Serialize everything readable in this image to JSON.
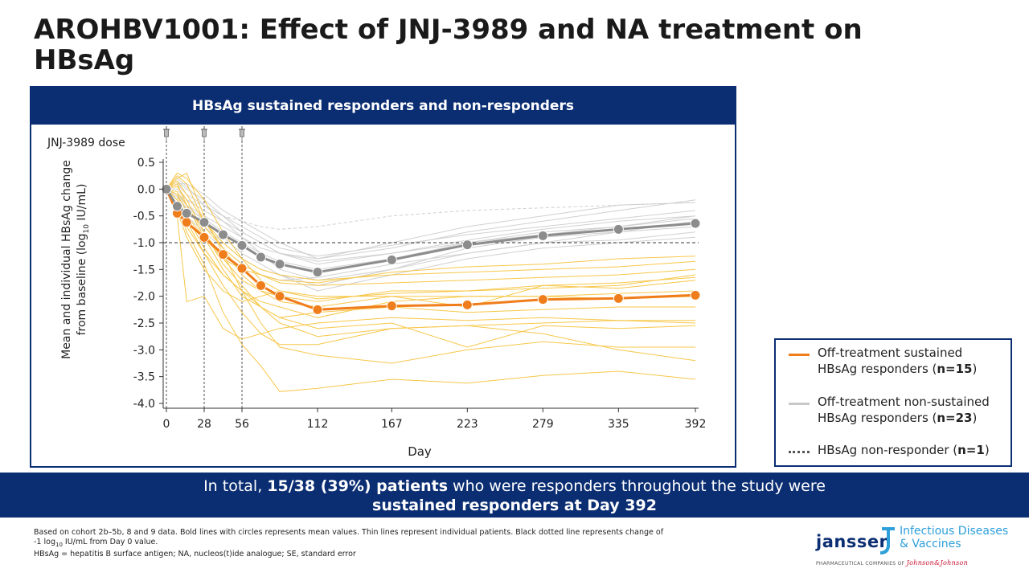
{
  "title": "AROHBV1001: Effect of JNJ-3989 and NA treatment on HBsAg",
  "panel": {
    "header": "HBsAg sustained responders and non-responders"
  },
  "chart_data": {
    "type": "line",
    "dose_label": "JNJ-3989 dose",
    "dose_days": [
      0,
      28,
      56
    ],
    "xlabel": "Day",
    "ylabel": "Mean and individual HBsAg change from baseline (log10 IU/mL)",
    "xticks": [
      0,
      28,
      56,
      112,
      167,
      223,
      279,
      335,
      392
    ],
    "ylim": [
      -4.0,
      0.5
    ],
    "yticks": [
      0.5,
      0.0,
      -0.5,
      -1.0,
      -1.5,
      -2.0,
      -2.5,
      -3.0,
      -3.5,
      -4.0
    ],
    "reference_line": -1.0,
    "colors": {
      "responder": "#f07d1b",
      "non_responder": "#8c8c8c",
      "responder_thin": "#f7c74a",
      "non_responder_thin": "#d0d0d0",
      "reference": "#333333"
    },
    "series": [
      {
        "name": "Off-treatment sustained HBsAg responders (n=15)",
        "x": [
          0,
          8,
          15,
          28,
          42,
          56,
          70,
          84,
          112,
          167,
          223,
          279,
          335,
          392
        ],
        "y": [
          0.0,
          -0.45,
          -0.62,
          -0.9,
          -1.22,
          -1.48,
          -1.8,
          -2.0,
          -2.25,
          -2.18,
          -2.16,
          -2.06,
          -2.04,
          -1.98
        ]
      },
      {
        "name": "Off-treatment non-sustained HBsAg responders (n=23)",
        "x": [
          0,
          8,
          15,
          28,
          42,
          56,
          70,
          84,
          112,
          167,
          223,
          279,
          335,
          392
        ],
        "y": [
          0.0,
          -0.32,
          -0.45,
          -0.62,
          -0.85,
          -1.05,
          -1.27,
          -1.4,
          -1.55,
          -1.32,
          -1.04,
          -0.87,
          -0.75,
          -0.64
        ]
      }
    ],
    "individual_responders": [
      [
        0,
        -0.3,
        -0.8,
        -1.4,
        -2.3,
        -2.9,
        -3.3,
        -3.78,
        -3.72,
        -3.55,
        -3.62,
        -3.48,
        -3.4,
        -3.55
      ],
      [
        0,
        0.2,
        0.3,
        -0.5,
        -1.2,
        -1.9,
        -2.5,
        -2.95,
        -3.1,
        -3.25,
        -3.0,
        -2.85,
        -2.95,
        -2.95
      ],
      [
        0,
        -0.1,
        -0.6,
        -1.2,
        -1.8,
        -2.3,
        -2.7,
        -2.9,
        -2.9,
        -2.6,
        -2.55,
        -2.7,
        -3.0,
        -3.2
      ],
      [
        0,
        -0.5,
        -2.1,
        -2.0,
        -2.6,
        -2.8,
        -2.7,
        -2.6,
        -2.5,
        -2.4,
        -2.45,
        -2.4,
        -2.45,
        -2.5
      ],
      [
        0,
        0.1,
        -0.3,
        -0.9,
        -1.5,
        -2.0,
        -2.2,
        -2.4,
        -2.3,
        -2.2,
        -2.3,
        -2.25,
        -2.2,
        -2.2
      ],
      [
        0,
        -0.2,
        -0.5,
        -1.1,
        -1.6,
        -1.9,
        -2.1,
        -2.2,
        -2.4,
        -2.1,
        -2.0,
        -2.0,
        -1.95,
        -1.9
      ],
      [
        0,
        0.25,
        0.1,
        -0.6,
        -1.1,
        -1.6,
        -1.9,
        -2.1,
        -2.2,
        -2.0,
        -2.2,
        -1.8,
        -1.85,
        -1.7
      ],
      [
        0,
        -0.4,
        -0.9,
        -1.5,
        -1.9,
        -2.1,
        -2.0,
        -1.9,
        -2.0,
        -2.0,
        -2.0,
        -2.0,
        -2.05,
        -2.0
      ],
      [
        0,
        0.05,
        -0.2,
        -0.8,
        -1.3,
        -1.7,
        -1.9,
        -2.0,
        -2.1,
        -1.9,
        -1.9,
        -1.85,
        -1.8,
        -1.6
      ],
      [
        0,
        -0.1,
        -0.4,
        -0.7,
        -1.1,
        -1.4,
        -1.6,
        -1.75,
        -1.8,
        -1.75,
        -1.7,
        -1.65,
        -1.6,
        -1.5
      ],
      [
        0,
        0.15,
        -0.1,
        -0.6,
        -1.0,
        -1.3,
        -1.5,
        -1.6,
        -1.7,
        -1.6,
        -1.55,
        -1.5,
        -1.45,
        -1.35
      ],
      [
        0,
        -0.2,
        -0.5,
        -0.9,
        -1.3,
        -1.5,
        -1.6,
        -1.7,
        -1.75,
        -1.55,
        -1.45,
        -1.4,
        -1.3,
        -1.25
      ],
      [
        0,
        -0.3,
        -0.7,
        -1.2,
        -1.6,
        -1.9,
        -2.2,
        -2.5,
        -2.75,
        -2.6,
        -2.55,
        -2.5,
        -2.45,
        -2.45
      ],
      [
        0,
        0.3,
        0.2,
        -0.2,
        -0.8,
        -1.3,
        -1.7,
        -1.9,
        -2.05,
        -1.95,
        -1.9,
        -1.8,
        -1.75,
        -1.65
      ],
      [
        0,
        -0.05,
        -0.3,
        -0.8,
        -1.4,
        -1.8,
        -2.2,
        -2.4,
        -2.6,
        -2.5,
        -2.95,
        -2.55,
        -2.6,
        -2.55
      ]
    ],
    "individual_non_responders": [
      [
        0,
        0.1,
        0.1,
        -0.1,
        -0.4,
        -0.6,
        -0.8,
        -1.0,
        -1.3,
        -1.1,
        -0.8,
        -0.6,
        -0.4,
        -0.2
      ],
      [
        0,
        -0.1,
        -0.3,
        -0.5,
        -0.7,
        -0.9,
        -1.1,
        -1.2,
        -1.3,
        -1.0,
        -0.7,
        -0.5,
        -0.3,
        -0.25
      ],
      [
        0,
        0.2,
        0.05,
        -0.3,
        -0.6,
        -0.9,
        -1.2,
        -1.5,
        -1.7,
        -1.5,
        -1.2,
        -1.0,
        -0.8,
        -0.7
      ],
      [
        0,
        -0.2,
        -0.4,
        -0.7,
        -1.0,
        -1.3,
        -1.5,
        -1.6,
        -1.8,
        -1.5,
        -1.1,
        -0.9,
        -0.8,
        -0.6
      ],
      [
        0,
        0.0,
        -0.2,
        -0.4,
        -0.6,
        -0.8,
        -1.0,
        -1.2,
        -1.4,
        -1.2,
        -1.0,
        -0.8,
        -0.7,
        -0.5
      ],
      [
        0,
        -0.1,
        -0.3,
        -0.6,
        -0.9,
        -1.2,
        -1.4,
        -1.6,
        -1.9,
        -1.6,
        -1.3,
        -1.1,
        -1.0,
        -0.9
      ],
      [
        0,
        0.1,
        -0.1,
        -0.3,
        -0.5,
        -0.7,
        -0.9,
        -1.1,
        -1.25,
        -1.05,
        -0.85,
        -0.7,
        -0.55,
        -0.4
      ],
      [
        0,
        -0.3,
        -0.5,
        -0.8,
        -1.1,
        -1.4,
        -1.6,
        -1.7,
        -1.65,
        -1.4,
        -1.2,
        -1.0,
        -0.95,
        -0.8
      ],
      [
        0,
        0.15,
        0.0,
        -0.2,
        -0.5,
        -0.8,
        -1.0,
        -1.2,
        -1.35,
        -1.2,
        -0.95,
        -0.75,
        -0.6,
        -0.5
      ],
      [
        0,
        -0.15,
        -0.35,
        -0.55,
        -0.8,
        -1.0,
        -1.2,
        -1.35,
        -1.5,
        -1.3,
        -1.0,
        -0.85,
        -0.7,
        -0.55
      ]
    ],
    "individual_dashed": [
      [
        0,
        -0.1,
        -0.2,
        -0.3,
        -0.5,
        -0.6,
        -0.7,
        -0.75,
        -0.7,
        -0.5,
        -0.4,
        -0.35,
        -0.3,
        -0.25
      ]
    ],
    "legend": "right"
  },
  "legend_items": {
    "responders_line1": "Off-treatment sustained",
    "responders_line2_pre": "HBsAg responders (",
    "responders_n": "n=15",
    "non_line1": "Off-treatment non-sustained",
    "non_line2_pre": "HBsAg responders (",
    "non_n": "n=23",
    "nonresp_pre": "HBsAg non-responder (",
    "nonresp_n": "n=1",
    "close": ")"
  },
  "banner": {
    "pre": "In total, ",
    "bold1": "15/38 (39%) patients",
    "mid": " who were responders throughout the study were",
    "bold2": "sustained responders at Day 392"
  },
  "footnote": {
    "line1": "Based on cohort 2b–5b, 8 and 9 data. Bold lines with circles represents mean values. Thin lines represent individual patients. Black dotted line represents change of",
    "line2_pre": "-1 log",
    "line2_sub": "10",
    "line2_post": " IU/mL from Day 0 value.",
    "line3": "HBsAg = hepatitis B surface antigen; NA, nucleos(t)ide analogue; SE, standard error"
  },
  "logo": {
    "brand": "janssen",
    "division_line1": "Infectious Diseases",
    "division_line2": "& Vaccines",
    "tagline": "PHARMACEUTICAL COMPANIES OF",
    "parent": "Johnson&Johnson"
  }
}
